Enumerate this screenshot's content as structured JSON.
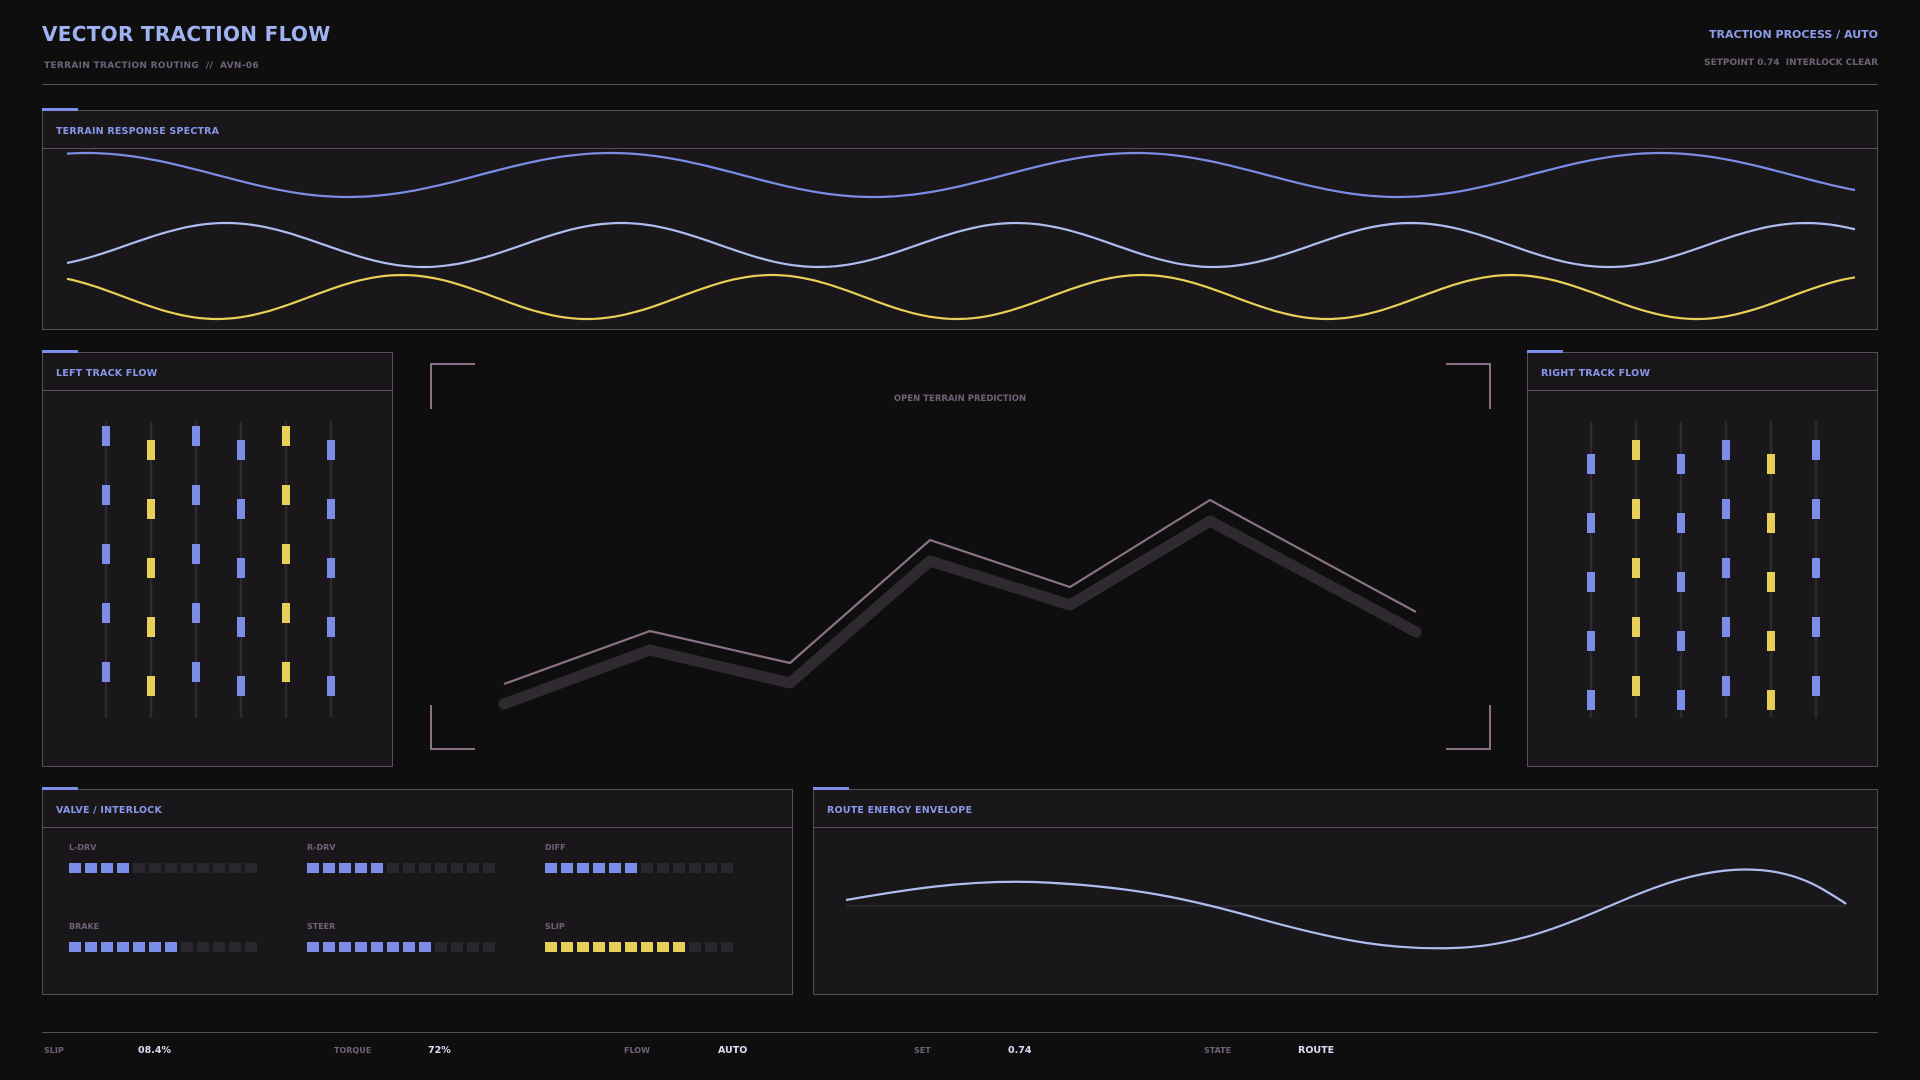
{
  "header": {
    "title": "VECTOR TRACTION FLOW",
    "subtitle": "TERRAIN TRACTION ROUTING  //  AVN-06",
    "process": "TRACTION PROCESS / AUTO",
    "status": "SETPOINT 0.74  INTERLOCK CLEAR"
  },
  "colors": {
    "accent_blue": "#7b8de6",
    "light_blue": "#aebcf0",
    "yellow": "#e8cf57",
    "border": "#5e4a60",
    "mauve": "#8a7186"
  },
  "panels": {
    "spectra": {
      "title": "TERRAIN RESPONSE SPECTRA"
    },
    "left_track": {
      "title": "LEFT TRACK FLOW"
    },
    "right_track": {
      "title": "RIGHT TRACK FLOW"
    },
    "prediction": {
      "label": "OPEN TERRAIN PREDICTION"
    },
    "valve": {
      "title": "VALVE / INTERLOCK"
    },
    "energy": {
      "title": "ROUTE ENERGY ENVELOPE"
    }
  },
  "meters": [
    {
      "label": "L-DRV",
      "filled": 4,
      "total": 12,
      "color": "blue"
    },
    {
      "label": "R-DRV",
      "filled": 5,
      "total": 12,
      "color": "blue"
    },
    {
      "label": "DIFF",
      "filled": 6,
      "total": 12,
      "color": "blue"
    },
    {
      "label": "BRAKE",
      "filled": 7,
      "total": 12,
      "color": "blue"
    },
    {
      "label": "STEER",
      "filled": 8,
      "total": 12,
      "color": "blue"
    },
    {
      "label": "SLIP",
      "filled": 9,
      "total": 12,
      "color": "yellow"
    }
  ],
  "footer": [
    {
      "label": "SLIP",
      "value": "08.4%"
    },
    {
      "label": "TORQUE",
      "value": "72%"
    },
    {
      "label": "FLOW",
      "value": "AUTO"
    },
    {
      "label": "SET",
      "value": "0.74"
    },
    {
      "label": "STATE",
      "value": "ROUTE"
    }
  ]
}
